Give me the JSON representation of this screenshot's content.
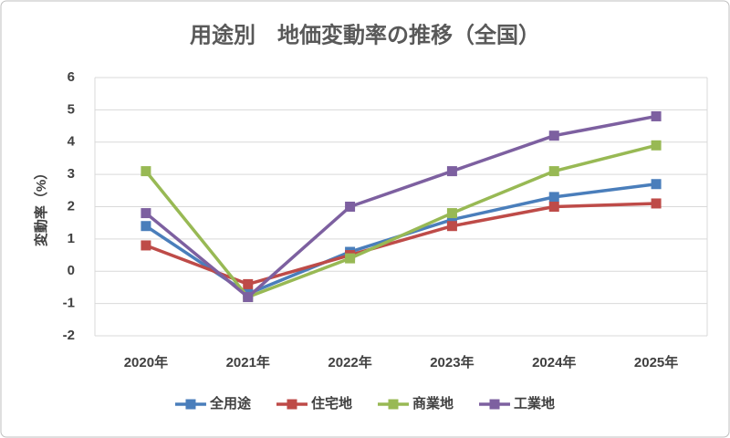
{
  "chart_data": {
    "type": "line",
    "title": "用途別　地価変動率の推移（全国）",
    "y_label": "変動率（%）",
    "categories": [
      "2020年",
      "2021年",
      "2022年",
      "2023年",
      "2024年",
      "2025年"
    ],
    "series": [
      {
        "name": "全用途",
        "color": "#4a7ebb",
        "values": [
          1.4,
          -0.7,
          0.6,
          1.6,
          2.3,
          2.7
        ]
      },
      {
        "name": "住宅地",
        "color": "#be4b48",
        "values": [
          0.8,
          -0.4,
          0.5,
          1.4,
          2.0,
          2.1
        ]
      },
      {
        "name": "商業地",
        "color": "#98b954",
        "values": [
          3.1,
          -0.8,
          0.4,
          1.8,
          3.1,
          3.9
        ]
      },
      {
        "name": "工業地",
        "color": "#7d60a0",
        "values": [
          1.8,
          -0.8,
          2.0,
          3.1,
          4.2,
          4.8
        ]
      }
    ],
    "ylim": [
      -2,
      6
    ],
    "yticks": [
      -2,
      -1,
      0,
      1,
      2,
      3,
      4,
      5,
      6
    ],
    "grid": true,
    "legend": "bottom"
  }
}
